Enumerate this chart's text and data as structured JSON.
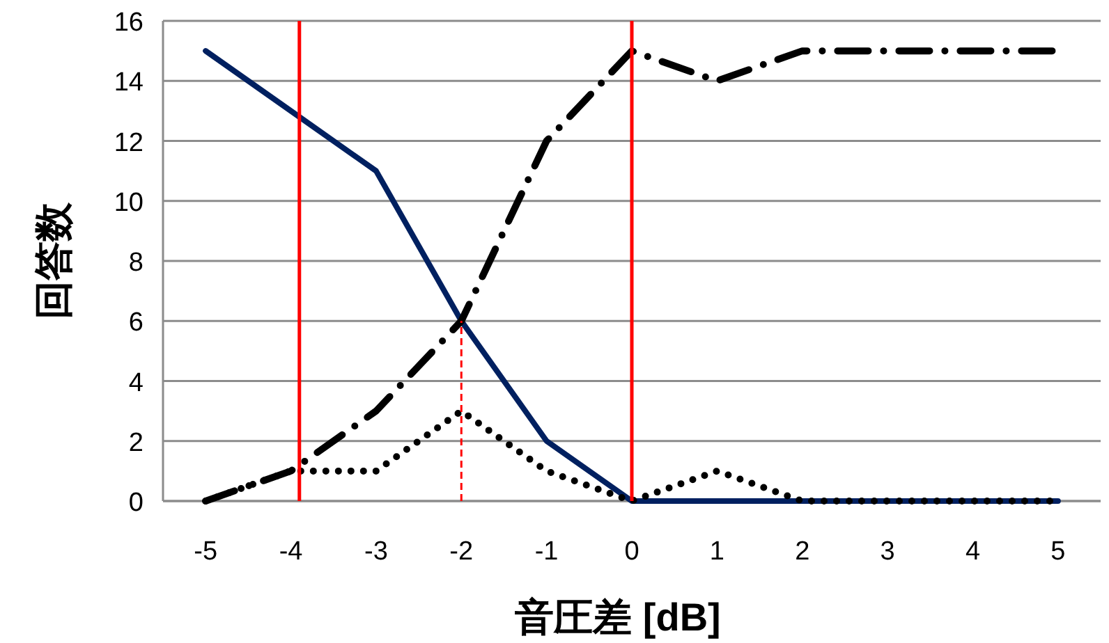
{
  "chart_data": {
    "type": "line",
    "xlabel": "音圧差 [dB]",
    "ylabel": "回答数",
    "x": [
      -5,
      -4,
      -3,
      -2,
      -1,
      0,
      1,
      2,
      3,
      4,
      5
    ],
    "series": [
      {
        "color": "#002060",
        "line_style": "solid",
        "values": [
          15,
          13,
          11,
          6,
          2,
          0,
          0,
          0,
          0,
          0,
          0
        ]
      },
      {
        "color": "#000000",
        "line_style": "dashdot",
        "values": [
          0,
          1,
          3,
          6,
          12,
          15,
          14,
          15,
          15,
          15,
          15
        ]
      },
      {
        "color": "#000000",
        "line_style": "dotted",
        "values": [
          0,
          1,
          1,
          3,
          1,
          0,
          1,
          0,
          0,
          0,
          0
        ]
      },
      {
        "color": "#ff0000",
        "line_style": "dashed",
        "x": [
          -2,
          -2
        ],
        "values": [
          0,
          6
        ]
      }
    ],
    "ref_lines": [
      {
        "axis": "x",
        "value": -3.9,
        "color": "#ff0000"
      },
      {
        "axis": "x",
        "value": 0,
        "color": "#ff0000"
      }
    ],
    "xlim": [
      -5.5,
      5.5
    ],
    "xticks": [
      -5,
      -4,
      -3,
      -2,
      -1,
      0,
      1,
      2,
      3,
      4,
      5
    ],
    "ylim": [
      0,
      16
    ],
    "yticks": [
      0,
      2,
      4,
      6,
      8,
      10,
      12,
      14,
      16
    ],
    "grid": "y",
    "marker": "none"
  }
}
